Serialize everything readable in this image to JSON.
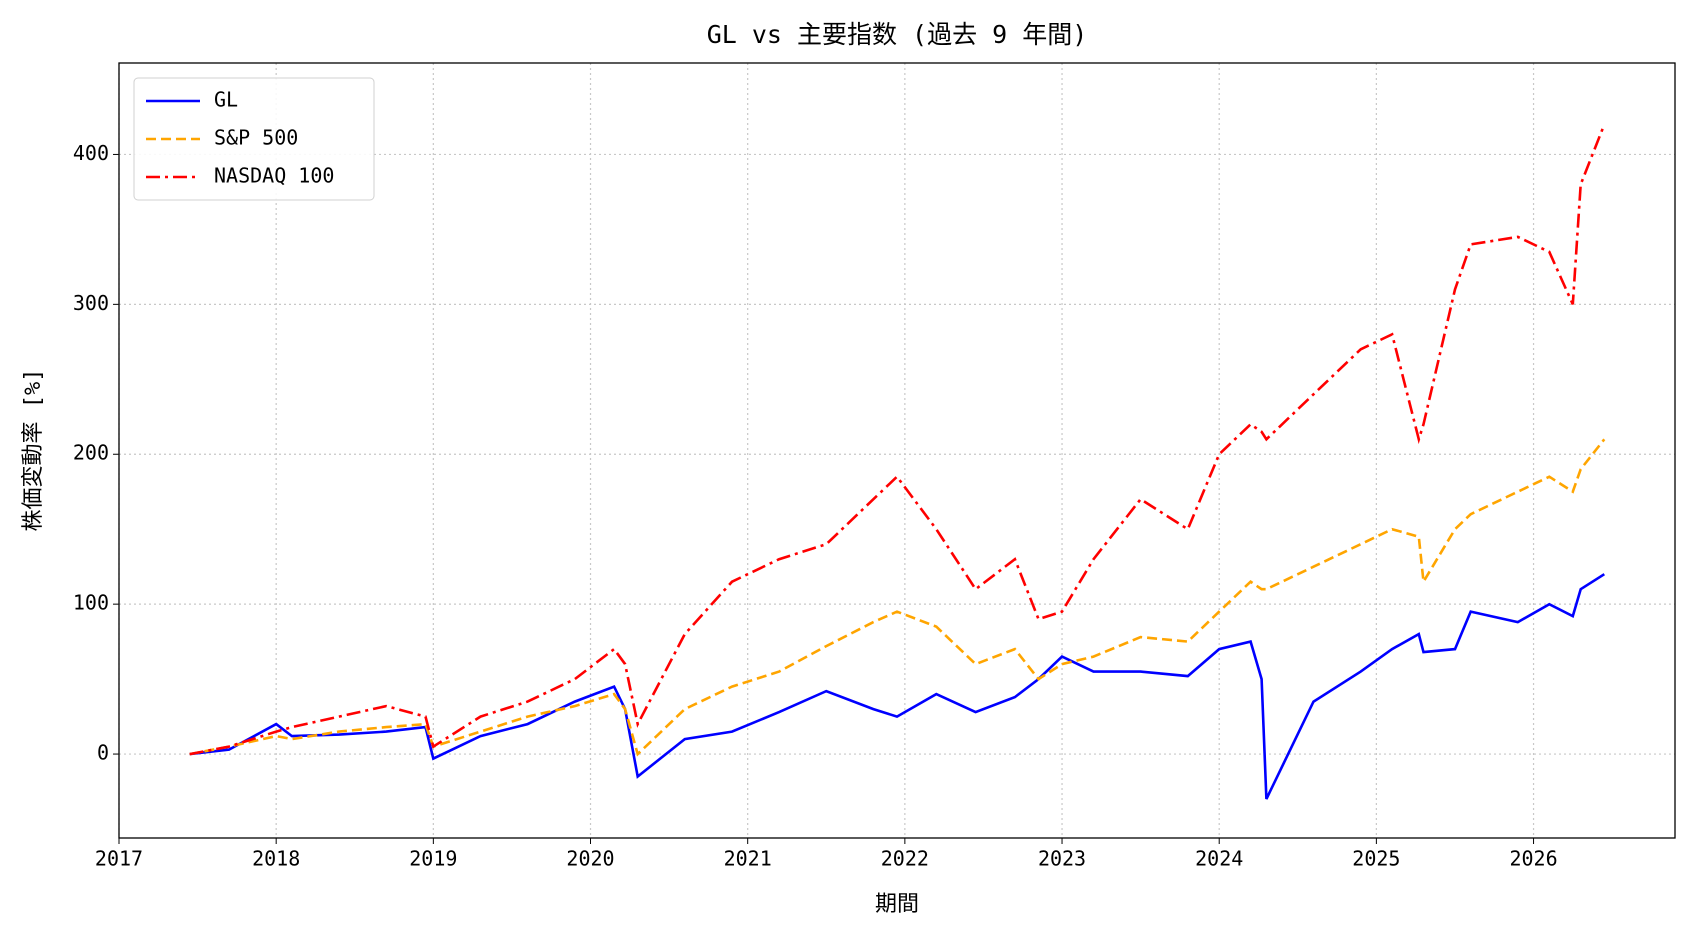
{
  "chart_data": {
    "type": "line",
    "title": "GL vs 主要指数 (過去 9 年間)",
    "xlabel": "期間",
    "ylabel": "株価変動率 [%]",
    "x": [
      2017.45,
      2017.7,
      2018.0,
      2018.1,
      2018.4,
      2018.7,
      2018.95,
      2019.0,
      2019.3,
      2019.6,
      2019.9,
      2020.15,
      2020.22,
      2020.3,
      2020.6,
      2020.9,
      2021.2,
      2021.5,
      2021.8,
      2021.95,
      2022.2,
      2022.45,
      2022.7,
      2022.85,
      2023.0,
      2023.2,
      2023.5,
      2023.8,
      2024.0,
      2024.2,
      2024.27,
      2024.3,
      2024.6,
      2024.9,
      2025.1,
      2025.27,
      2025.3,
      2025.5,
      2025.6,
      2025.9,
      2026.1,
      2026.25,
      2026.3,
      2026.45
    ],
    "series": [
      {
        "name": "GL",
        "color": "#0000ff",
        "dash": "solid",
        "values": [
          0,
          3,
          20,
          12,
          13,
          15,
          18,
          -3,
          12,
          20,
          35,
          45,
          30,
          -15,
          10,
          15,
          28,
          42,
          30,
          25,
          40,
          28,
          38,
          50,
          65,
          55,
          55,
          52,
          70,
          75,
          50,
          -30,
          35,
          55,
          70,
          80,
          68,
          70,
          95,
          88,
          100,
          92,
          110,
          120
        ]
      },
      {
        "name": "S&P 500",
        "color": "#ffa500",
        "dash": "dashed",
        "values": [
          0,
          5,
          12,
          10,
          15,
          18,
          20,
          5,
          15,
          25,
          32,
          40,
          30,
          0,
          30,
          45,
          55,
          72,
          88,
          95,
          85,
          60,
          70,
          50,
          60,
          65,
          78,
          75,
          95,
          115,
          110,
          110,
          125,
          140,
          150,
          145,
          115,
          150,
          160,
          175,
          185,
          175,
          190,
          210
        ]
      },
      {
        "name": "NASDAQ 100",
        "color": "#ff0000",
        "dash": "dashdot",
        "values": [
          0,
          5,
          15,
          18,
          25,
          32,
          25,
          5,
          25,
          35,
          50,
          70,
          60,
          20,
          80,
          115,
          130,
          140,
          170,
          185,
          150,
          110,
          130,
          90,
          95,
          130,
          170,
          150,
          200,
          220,
          215,
          210,
          240,
          270,
          280,
          210,
          220,
          310,
          340,
          345,
          335,
          300,
          380,
          420
        ]
      }
    ],
    "xlim": [
      2017,
      2026.9
    ],
    "xticks": [
      2017,
      2018,
      2019,
      2020,
      2021,
      2022,
      2023,
      2024,
      2025,
      2026
    ],
    "ylim": [
      -56,
      461
    ],
    "yticks": [
      0,
      100,
      200,
      300,
      400
    ],
    "grid": true,
    "legend": "upper-left"
  }
}
